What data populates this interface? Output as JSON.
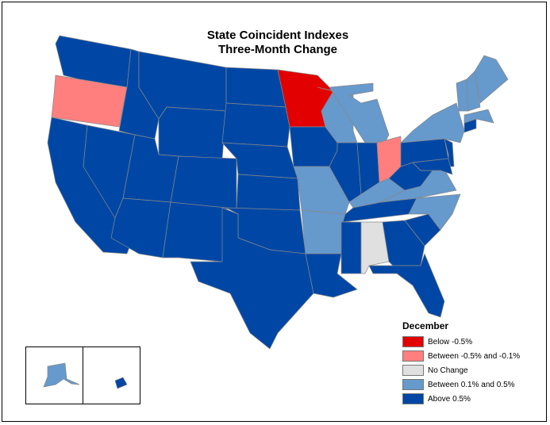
{
  "title_line1": "State Coincident Indexes",
  "title_line2": "Three-Month Change",
  "legend": {
    "title": "December",
    "items": [
      {
        "key": "below",
        "label": "Below -0.5%",
        "color": "#e30000"
      },
      {
        "key": "neg",
        "label": "Between -0.5% and -0.1%",
        "color": "#ff7f7f"
      },
      {
        "key": "none",
        "label": "No Change",
        "color": "#e0e0e0"
      },
      {
        "key": "pos",
        "label": "Between 0.1% and 0.5%",
        "color": "#6699cc"
      },
      {
        "key": "above",
        "label": "Above 0.5%",
        "color": "#0047a5"
      }
    ]
  },
  "states": {
    "WA": "above",
    "OR": "neg",
    "CA": "above",
    "NV": "above",
    "ID": "above",
    "MT": "above",
    "WY": "above",
    "UT": "above",
    "AZ": "above",
    "CO": "above",
    "NM": "above",
    "ND": "above",
    "SD": "above",
    "NE": "above",
    "KS": "above",
    "OK": "above",
    "TX": "above",
    "MN": "below",
    "IA": "above",
    "MO": "pos",
    "AR": "pos",
    "LA": "above",
    "WI": "pos",
    "MI": "pos",
    "IL": "above",
    "IN": "above",
    "OH": "neg",
    "KY": "pos",
    "TN": "above",
    "MS": "above",
    "AL": "none",
    "GA": "above",
    "FL": "above",
    "SC": "above",
    "NC": "pos",
    "VA": "pos",
    "WV": "above",
    "PA": "above",
    "NY": "pos",
    "NJ": "above",
    "MD": "above",
    "CT": "above",
    "MA": "pos",
    "VT": "pos",
    "NH": "pos",
    "ME": "pos",
    "AK": "pos",
    "HI": "above"
  }
}
